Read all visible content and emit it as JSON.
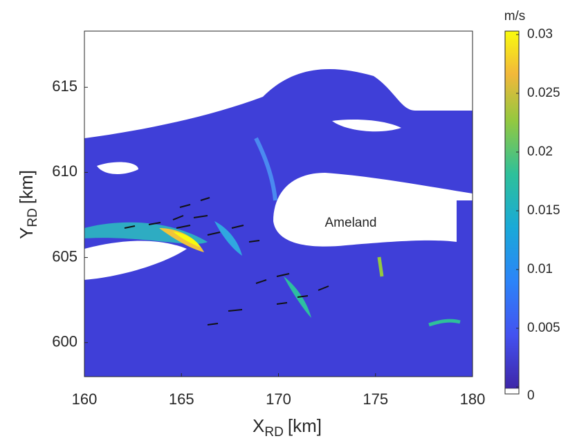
{
  "chart_data": {
    "type": "heatmap",
    "xlabel": {
      "main": "X",
      "sub": "RD",
      "unit": "[km]"
    },
    "ylabel": {
      "main": "Y",
      "sub": "RD",
      "unit": "[km]"
    },
    "annotation": "Ameland",
    "xlim": [
      160,
      180
    ],
    "xticks": [
      160,
      165,
      170,
      175,
      180
    ],
    "ylim": [
      598,
      618.3
    ],
    "yticks": [
      600,
      605,
      610,
      615
    ],
    "colorbar": {
      "label": "m/s",
      "lim": [
        0,
        0.03
      ],
      "ticks": [
        0,
        0.005,
        0.01,
        0.015,
        0.02,
        0.025,
        0.03
      ]
    }
  }
}
